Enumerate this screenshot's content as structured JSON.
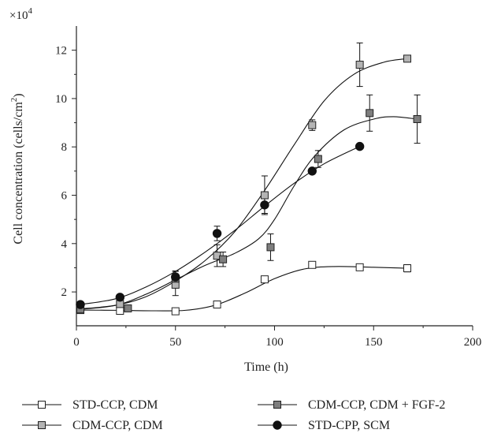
{
  "chart_data": {
    "type": "line",
    "title": "",
    "xlabel": "Time (h)",
    "ylabel_main": "Cell concentration (cells/cm",
    "ylabel_sup": "2",
    "ylabel_close": ")",
    "y_multiplier_base": "×10",
    "y_multiplier_exp": "4",
    "xlim": [
      0,
      200
    ],
    "ylim": [
      0.6,
      13.0
    ],
    "x_ticks": [
      0,
      50,
      100,
      150,
      200
    ],
    "x_tick_labels": [
      "0",
      "50",
      "100",
      "150",
      "200"
    ],
    "y_ticks": [
      2,
      4,
      6,
      8,
      10,
      12
    ],
    "y_tick_labels": [
      "2",
      "4",
      "6",
      "8",
      "10",
      "12"
    ],
    "grid": false,
    "legend_position": "bottom",
    "series": [
      {
        "name": "STD-CCP, CDM",
        "marker": "square-open",
        "fill": "#ffffff",
        "points": [
          {
            "x": 2,
            "y": 1.25,
            "err": 0.1
          },
          {
            "x": 22,
            "y": 1.22,
            "err": 0.1
          },
          {
            "x": 50,
            "y": 1.2,
            "err": 0.1
          },
          {
            "x": 71,
            "y": 1.48,
            "err": 0.12
          },
          {
            "x": 95,
            "y": 2.52,
            "err": 0.1
          },
          {
            "x": 119,
            "y": 3.12,
            "err": 0.1
          },
          {
            "x": 143,
            "y": 3.02,
            "err": 0.1
          },
          {
            "x": 167,
            "y": 2.98,
            "err": 0.15
          }
        ],
        "curve": [
          [
            2,
            1.25
          ],
          [
            20,
            1.24
          ],
          [
            40,
            1.22
          ],
          [
            55,
            1.24
          ],
          [
            70,
            1.45
          ],
          [
            85,
            1.95
          ],
          [
            100,
            2.55
          ],
          [
            115,
            2.95
          ],
          [
            130,
            3.05
          ],
          [
            150,
            3.02
          ],
          [
            167,
            2.98
          ]
        ]
      },
      {
        "name": "CDM-CCP, CDM",
        "marker": "square",
        "fill": "#b4b4b4",
        "points": [
          {
            "x": 2,
            "y": 1.3,
            "err": 0.1
          },
          {
            "x": 22,
            "y": 1.5,
            "err": 0.1
          },
          {
            "x": 50,
            "y": 2.3,
            "err": 0.45
          },
          {
            "x": 71,
            "y": 3.5,
            "err": 0.45
          },
          {
            "x": 95,
            "y": 6.0,
            "err": 0.8
          },
          {
            "x": 119,
            "y": 8.9,
            "err": 0.22
          },
          {
            "x": 143,
            "y": 11.4,
            "err": 0.9
          },
          {
            "x": 167,
            "y": 11.65,
            "err": 0.12
          }
        ],
        "curve": [
          [
            2,
            1.3
          ],
          [
            20,
            1.45
          ],
          [
            35,
            1.8
          ],
          [
            50,
            2.45
          ],
          [
            65,
            3.3
          ],
          [
            80,
            4.5
          ],
          [
            95,
            6.2
          ],
          [
            110,
            8.1
          ],
          [
            125,
            9.9
          ],
          [
            140,
            11.0
          ],
          [
            155,
            11.5
          ],
          [
            167,
            11.65
          ]
        ]
      },
      {
        "name": "CDM-CCP, CDM + FGF-2",
        "marker": "square",
        "fill": "#7e7e7e",
        "points": [
          {
            "x": 2,
            "y": 1.28,
            "err": 0.1
          },
          {
            "x": 26,
            "y": 1.32,
            "err": 0.1
          },
          {
            "x": 50,
            "y": 2.55,
            "err": 0.3
          },
          {
            "x": 74,
            "y": 3.35,
            "err": 0.3
          },
          {
            "x": 98,
            "y": 3.85,
            "err": 0.55
          },
          {
            "x": 122,
            "y": 7.5,
            "err": 0.35
          },
          {
            "x": 148,
            "y": 9.4,
            "err": 0.75
          },
          {
            "x": 172,
            "y": 9.15,
            "err": 1.0
          }
        ],
        "curve": [
          [
            2,
            1.28
          ],
          [
            20,
            1.45
          ],
          [
            35,
            1.9
          ],
          [
            50,
            2.5
          ],
          [
            65,
            3.1
          ],
          [
            80,
            3.6
          ],
          [
            92,
            4.2
          ],
          [
            100,
            5.0
          ],
          [
            110,
            6.4
          ],
          [
            120,
            7.6
          ],
          [
            135,
            8.7
          ],
          [
            150,
            9.15
          ],
          [
            160,
            9.25
          ],
          [
            172,
            9.15
          ]
        ]
      },
      {
        "name": "STD-CPP, SCM",
        "marker": "circle",
        "fill": "#111111",
        "points": [
          {
            "x": 2,
            "y": 1.48,
            "err": 0.1
          },
          {
            "x": 22,
            "y": 1.78,
            "err": 0.1
          },
          {
            "x": 50,
            "y": 2.62,
            "err": 0.25
          },
          {
            "x": 71,
            "y": 4.42,
            "err": 0.3
          },
          {
            "x": 95,
            "y": 5.6,
            "err": 0.35
          },
          {
            "x": 119,
            "y": 7.0,
            "err": 0.1
          },
          {
            "x": 143,
            "y": 8.02,
            "err": 0.1
          }
        ],
        "curve": [
          [
            2,
            1.48
          ],
          [
            20,
            1.72
          ],
          [
            35,
            2.2
          ],
          [
            50,
            2.85
          ],
          [
            65,
            3.65
          ],
          [
            80,
            4.55
          ],
          [
            95,
            5.55
          ],
          [
            110,
            6.5
          ],
          [
            125,
            7.3
          ],
          [
            143,
            8.02
          ]
        ]
      }
    ]
  }
}
